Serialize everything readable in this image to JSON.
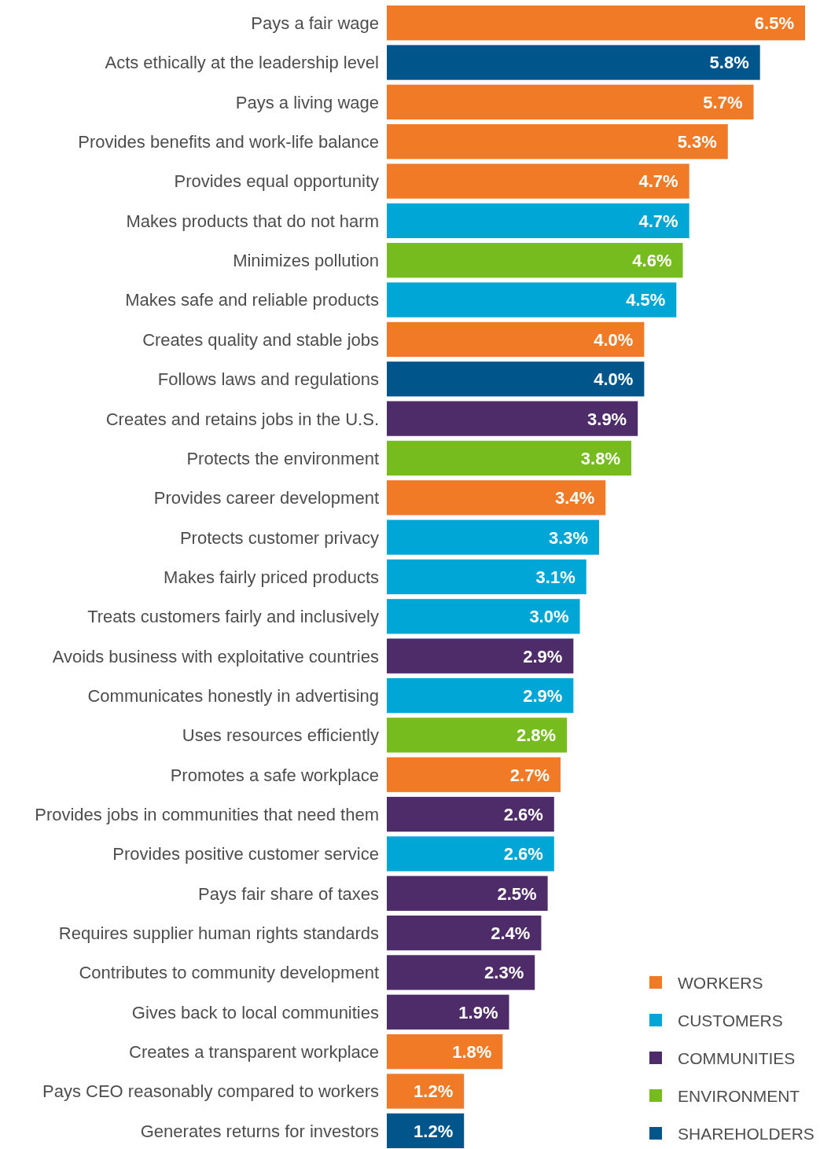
{
  "chart_data": {
    "type": "bar",
    "orientation": "horizontal",
    "legend": "bottom right",
    "categories": [
      "Pays a fair wage",
      "Acts ethically at the leadership level",
      "Pays a living wage",
      "Provides benefits and work-life balance",
      "Provides equal opportunity",
      "Makes products that do not harm",
      "Minimizes pollution",
      "Makes safe and reliable products",
      "Creates quality and stable jobs",
      "Follows laws and regulations",
      "Creates and retains jobs in the U.S.",
      "Protects the environment",
      "Provides career development",
      "Protects customer privacy",
      "Makes fairly priced products",
      "Treats customers fairly and inclusively",
      "Avoids business with exploitative countries",
      "Communicates honestly in advertising",
      "Uses resources efficiently",
      "Promotes a safe workplace",
      "Provides jobs in communities that need them",
      "Provides positive customer service",
      "Pays fair share of taxes",
      "Requires supplier human rights standards",
      "Contributes to community development",
      "Gives back to local communities",
      "Creates a transparent workplace",
      "Pays CEO reasonably compared to workers",
      "Generates returns for investors"
    ],
    "series": [
      {
        "name": "WORKERS",
        "color": "#f07a26",
        "values": [
          6.5,
          null,
          5.7,
          5.3,
          4.7,
          null,
          null,
          null,
          4.0,
          null,
          null,
          null,
          3.4,
          null,
          null,
          null,
          null,
          null,
          null,
          2.7,
          null,
          null,
          null,
          null,
          null,
          null,
          1.8,
          1.2,
          null
        ],
        "value_labels": [
          "6.5%",
          null,
          "5.7%",
          "5.3%",
          "4.7%",
          null,
          null,
          null,
          "4.0%",
          null,
          null,
          null,
          "3.4%",
          null,
          null,
          null,
          null,
          null,
          null,
          "2.7%",
          null,
          null,
          null,
          null,
          null,
          null,
          "1.8%",
          "1.2%",
          null
        ]
      },
      {
        "name": "CUSTOMERS",
        "color": "#00a6d6",
        "values": [
          null,
          null,
          null,
          null,
          null,
          4.7,
          null,
          4.5,
          null,
          null,
          null,
          null,
          null,
          3.3,
          3.1,
          3.0,
          null,
          2.9,
          null,
          null,
          null,
          2.6,
          null,
          null,
          null,
          null,
          null,
          null,
          null
        ],
        "value_labels": [
          null,
          null,
          null,
          null,
          null,
          "4.7%",
          null,
          "4.5%",
          null,
          null,
          null,
          null,
          null,
          "3.3%",
          "3.1%",
          "3.0%",
          null,
          "2.9%",
          null,
          null,
          null,
          "2.6%",
          null,
          null,
          null,
          null,
          null,
          null,
          null
        ]
      },
      {
        "name": "COMMUNITIES",
        "color": "#4e2b69",
        "values": [
          null,
          null,
          null,
          null,
          null,
          null,
          null,
          null,
          null,
          null,
          3.9,
          null,
          null,
          null,
          null,
          null,
          2.9,
          null,
          null,
          null,
          2.6,
          null,
          2.5,
          2.4,
          2.3,
          1.9,
          null,
          null,
          null
        ],
        "value_labels": [
          null,
          null,
          null,
          null,
          null,
          null,
          null,
          null,
          null,
          null,
          "3.9%",
          null,
          null,
          null,
          null,
          null,
          "2.9%",
          null,
          null,
          null,
          "2.6%",
          null,
          "2.5%",
          "2.4%",
          "2.3%",
          "1.9%",
          null,
          null,
          null
        ]
      },
      {
        "name": "ENVIRONMENT",
        "color": "#77bc1f",
        "values": [
          null,
          null,
          null,
          null,
          null,
          null,
          4.6,
          null,
          null,
          null,
          null,
          3.8,
          null,
          null,
          null,
          null,
          null,
          null,
          2.8,
          null,
          null,
          null,
          null,
          null,
          null,
          null,
          null,
          null,
          null
        ],
        "value_labels": [
          null,
          null,
          null,
          null,
          null,
          null,
          "4.6%",
          null,
          null,
          null,
          null,
          "3.8%",
          null,
          null,
          null,
          null,
          null,
          null,
          "2.8%",
          null,
          null,
          null,
          null,
          null,
          null,
          null,
          null,
          null,
          null
        ]
      },
      {
        "name": "SHAREHOLDERS",
        "color": "#00558b",
        "values": [
          null,
          5.8,
          null,
          null,
          null,
          null,
          null,
          null,
          null,
          4.0,
          null,
          null,
          null,
          null,
          null,
          null,
          null,
          null,
          null,
          null,
          null,
          null,
          null,
          null,
          null,
          null,
          null,
          null,
          1.2
        ],
        "value_labels": [
          null,
          "5.8%",
          null,
          null,
          null,
          null,
          null,
          null,
          null,
          "4.0%",
          null,
          null,
          null,
          null,
          null,
          null,
          null,
          null,
          null,
          null,
          null,
          null,
          null,
          null,
          null,
          null,
          null,
          null,
          "1.2%"
        ]
      }
    ]
  }
}
